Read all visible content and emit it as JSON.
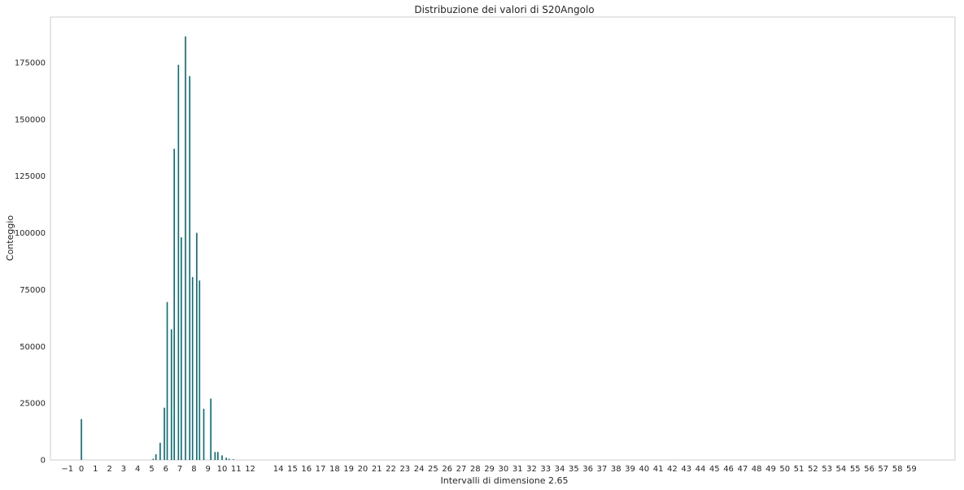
{
  "chart_data": {
    "type": "bar",
    "title": "Distribuzione dei valori di S20Angolo",
    "xlabel": "Intervalli di dimensione 2.65",
    "ylabel": "Conteggio",
    "xlim": [
      -2.2,
      62.1
    ],
    "ylim": [
      0,
      195000
    ],
    "grid": false,
    "bar_color": "#006d77",
    "y_ticks": [
      0,
      25000,
      50000,
      75000,
      100000,
      125000,
      150000,
      175000
    ],
    "x_ticks": [
      -1,
      0,
      1,
      2,
      3,
      4,
      5,
      6,
      7,
      8,
      9,
      10,
      11,
      12,
      14,
      15,
      16,
      17,
      18,
      19,
      20,
      21,
      22,
      23,
      24,
      25,
      26,
      27,
      28,
      29,
      30,
      31,
      32,
      33,
      34,
      35,
      36,
      37,
      38,
      39,
      40,
      41,
      42,
      43,
      44,
      45,
      46,
      47,
      48,
      49,
      50,
      51,
      52,
      53,
      54,
      55,
      56,
      57,
      58,
      59
    ],
    "x_tick_labels": [
      "−1",
      "0",
      "1",
      "2",
      "3",
      "4",
      "5",
      "6",
      "7",
      "8",
      "9",
      "10",
      "11",
      "12",
      "14",
      "15",
      "16",
      "17",
      "18",
      "19",
      "20",
      "21",
      "22",
      "23",
      "24",
      "25",
      "26",
      "27",
      "28",
      "29",
      "30",
      "31",
      "32",
      "33",
      "34",
      "35",
      "36",
      "37",
      "38",
      "39",
      "40",
      "41",
      "42",
      "43",
      "44",
      "45",
      "46",
      "47",
      "48",
      "49",
      "50",
      "51",
      "52",
      "53",
      "54",
      "55",
      "56",
      "57",
      "58",
      "59"
    ],
    "bars": {
      "x": [
        0.0,
        5.1,
        5.3,
        5.6,
        5.9,
        6.1,
        6.4,
        6.6,
        6.9,
        7.1,
        7.4,
        7.7,
        7.9,
        8.2,
        8.4,
        8.7,
        9.2,
        9.5,
        9.7,
        10.0,
        10.3,
        10.5,
        10.8
      ],
      "values": [
        18000,
        500,
        2500,
        7500,
        23000,
        69500,
        57500,
        137000,
        174000,
        98000,
        186500,
        169000,
        80500,
        100000,
        79000,
        22500,
        27000,
        3500,
        3500,
        2000,
        1000,
        500,
        300
      ]
    }
  }
}
